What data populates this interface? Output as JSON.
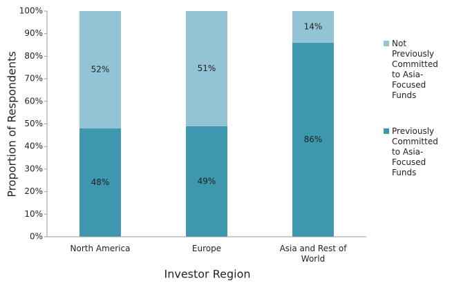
{
  "chart_data": {
    "type": "stacked_bar",
    "categories": [
      "North America",
      "Europe",
      "Asia and Rest of World"
    ],
    "series": [
      {
        "name": "Previously Committed to Asia-Focused Funds",
        "color": "#3d97ae",
        "values": [
          48,
          49,
          86
        ],
        "value_labels": [
          "48%",
          "49%",
          "86%"
        ]
      },
      {
        "name": "Not Previously Committed to Asia-Focused Funds",
        "color": "#93c4d6",
        "values": [
          52,
          51,
          14
        ],
        "value_labels": [
          "52%",
          "51%",
          "14%"
        ]
      }
    ],
    "xlabel": "Investor Region",
    "ylabel": "Proportion of Respondents",
    "ylim": [
      0,
      100
    ],
    "yticks": [
      {
        "value": 0,
        "label": "0%"
      },
      {
        "value": 10,
        "label": "10%"
      },
      {
        "value": 20,
        "label": "20%"
      },
      {
        "value": 30,
        "label": "30%"
      },
      {
        "value": 40,
        "label": "40%"
      },
      {
        "value": 50,
        "label": "50%"
      },
      {
        "value": 60,
        "label": "60%"
      },
      {
        "value": 70,
        "label": "70%"
      },
      {
        "value": 80,
        "label": "80%"
      },
      {
        "value": 90,
        "label": "90%"
      },
      {
        "value": 100,
        "label": "100%"
      }
    ],
    "legend": "right"
  }
}
